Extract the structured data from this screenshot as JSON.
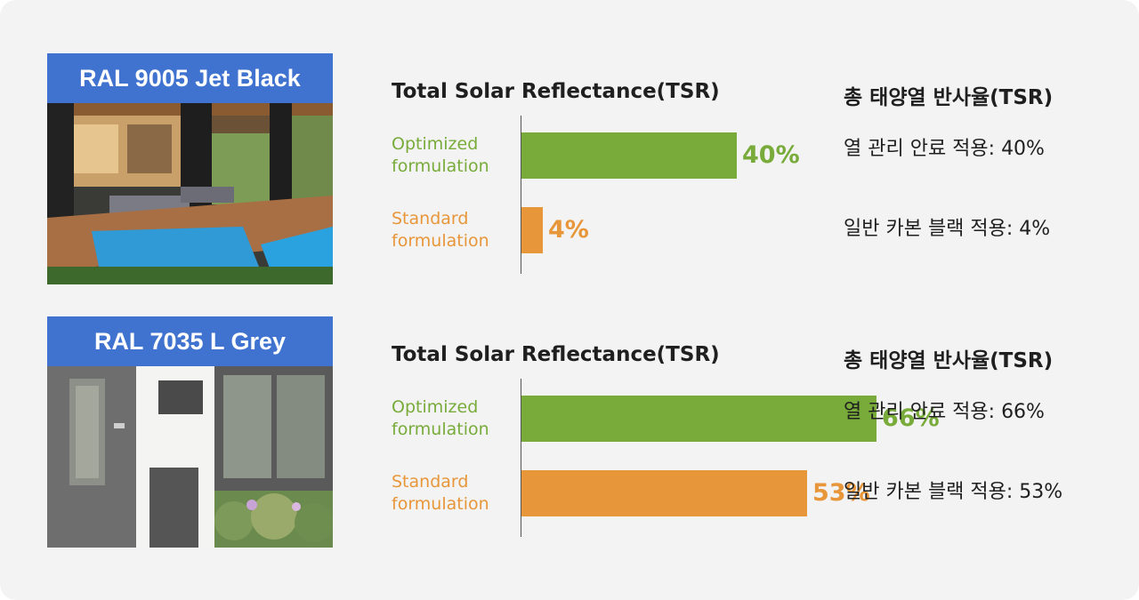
{
  "colors": {
    "optimized": "#78ab3a",
    "standard": "#e8963a",
    "label_bg": "#3f73cf"
  },
  "chart_data": [
    {
      "type": "bar",
      "orientation": "horizontal",
      "title": "Total Solar Reflectance(TSR)",
      "categories": [
        "Optimized\nformulation",
        "Standard\nformulation"
      ],
      "values": [
        40,
        4
      ],
      "value_labels": [
        "40%",
        "4%"
      ],
      "xlim": [
        0,
        100
      ]
    },
    {
      "type": "bar",
      "orientation": "horizontal",
      "title": "Total Solar Reflectance(TSR)",
      "categories": [
        "Optimized\nformulation",
        "Standard\nformulation"
      ],
      "values": [
        66,
        53
      ],
      "value_labels": [
        "66%",
        "53%"
      ],
      "xlim": [
        0,
        100
      ]
    }
  ],
  "sections": [
    {
      "photo_label": "RAL 9005 Jet Black",
      "photo_icon": "modern-house-patio-pool-image",
      "ko_title": "총 태양열 반사율(TSR)",
      "ko_lines": [
        "열 관리 안료 적용: 40%",
        "일반 카본 블랙 적용: 4%"
      ]
    },
    {
      "photo_label": "RAL 7035 L Grey",
      "photo_icon": "grey-house-door-window-image",
      "ko_title": "총 태양열 반사율(TSR)",
      "ko_lines": [
        "열 관리 안료 적용: 66%",
        "일반 카본 블랙 적용: 53%"
      ]
    }
  ]
}
